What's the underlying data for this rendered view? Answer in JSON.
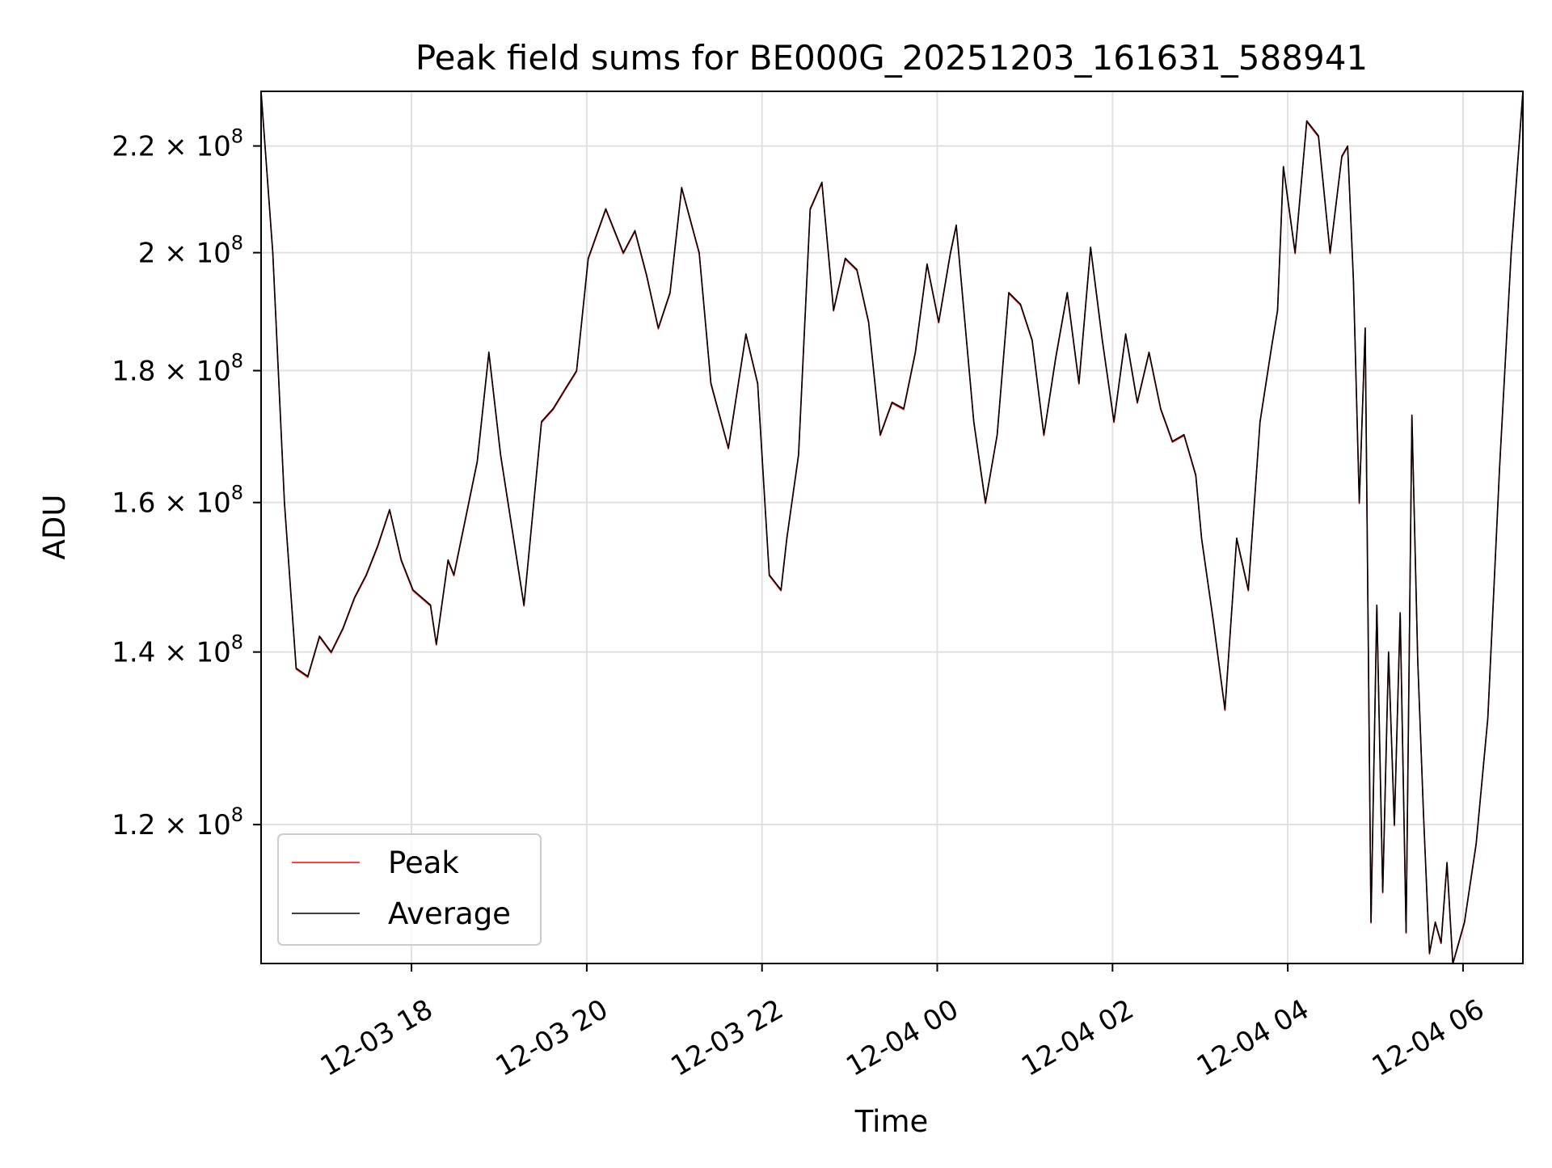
{
  "chart_data": {
    "type": "line",
    "title": "Peak field sums for BE000G_20251203_161631_588941",
    "xlabel": "Time",
    "ylabel": "ADU",
    "y_scale": "log",
    "ylim": [
      106000000,
      231000000
    ],
    "xlim": [
      "2025-12-03 16:17",
      "2025-12-04 06:41"
    ],
    "grid": true,
    "legend_position": "lower-left",
    "x_ticks": [
      {
        "value": "2025-12-03 18:00",
        "label": "12-03 18"
      },
      {
        "value": "2025-12-03 20:00",
        "label": "12-03 20"
      },
      {
        "value": "2025-12-03 22:00",
        "label": "12-03 22"
      },
      {
        "value": "2025-12-04 00:00",
        "label": "12-04 00"
      },
      {
        "value": "2025-12-04 02:00",
        "label": "12-04 02"
      },
      {
        "value": "2025-12-04 04:00",
        "label": "12-04 04"
      },
      {
        "value": "2025-12-04 06:00",
        "label": "12-04 06"
      }
    ],
    "y_ticks": [
      {
        "value": 120000000,
        "mantissa": "1.2",
        "exp": "8"
      },
      {
        "value": 140000000,
        "mantissa": "1.4",
        "exp": "8"
      },
      {
        "value": 160000000,
        "mantissa": "1.6",
        "exp": "8"
      },
      {
        "value": 180000000,
        "mantissa": "1.8",
        "exp": "8"
      },
      {
        "value": 200000000,
        "mantissa": "2",
        "exp": "8"
      },
      {
        "value": 220000000,
        "mantissa": "2.2",
        "exp": "8"
      }
    ],
    "times_symbol": "×",
    "tick_base": "10",
    "x": [
      "2025-12-03 16:17",
      "2025-12-03 16:25",
      "2025-12-03 16:33",
      "2025-12-03 16:41",
      "2025-12-03 16:49",
      "2025-12-03 16:57",
      "2025-12-03 17:05",
      "2025-12-03 17:13",
      "2025-12-03 17:21",
      "2025-12-03 17:29",
      "2025-12-03 17:37",
      "2025-12-03 17:45",
      "2025-12-03 17:53",
      "2025-12-03 18:01",
      "2025-12-03 18:13",
      "2025-12-03 18:17",
      "2025-12-03 18:25",
      "2025-12-03 18:29",
      "2025-12-03 18:45",
      "2025-12-03 18:53",
      "2025-12-03 19:01",
      "2025-12-03 19:17",
      "2025-12-03 19:29",
      "2025-12-03 19:37",
      "2025-12-03 19:45",
      "2025-12-03 19:53",
      "2025-12-03 20:01",
      "2025-12-03 20:13",
      "2025-12-03 20:25",
      "2025-12-03 20:33",
      "2025-12-03 20:41",
      "2025-12-03 20:49",
      "2025-12-03 20:57",
      "2025-12-03 21:05",
      "2025-12-03 21:17",
      "2025-12-03 21:25",
      "2025-12-03 21:37",
      "2025-12-03 21:49",
      "2025-12-03 21:57",
      "2025-12-03 22:05",
      "2025-12-03 22:13",
      "2025-12-03 22:17",
      "2025-12-03 22:25",
      "2025-12-03 22:33",
      "2025-12-03 22:41",
      "2025-12-03 22:49",
      "2025-12-03 22:57",
      "2025-12-03 23:05",
      "2025-12-03 23:13",
      "2025-12-03 23:21",
      "2025-12-03 23:29",
      "2025-12-03 23:37",
      "2025-12-03 23:45",
      "2025-12-03 23:53",
      "2025-12-04 00:01",
      "2025-12-04 00:09",
      "2025-12-04 00:13",
      "2025-12-04 00:25",
      "2025-12-04 00:33",
      "2025-12-04 00:41",
      "2025-12-04 00:49",
      "2025-12-04 00:57",
      "2025-12-04 01:05",
      "2025-12-04 01:13",
      "2025-12-04 01:21",
      "2025-12-04 01:29",
      "2025-12-04 01:37",
      "2025-12-04 01:45",
      "2025-12-04 01:53",
      "2025-12-04 02:01",
      "2025-12-04 02:09",
      "2025-12-04 02:17",
      "2025-12-04 02:25",
      "2025-12-04 02:33",
      "2025-12-04 02:41",
      "2025-12-04 02:49",
      "2025-12-04 02:57",
      "2025-12-04 03:01",
      "2025-12-04 03:09",
      "2025-12-04 03:17",
      "2025-12-04 03:25",
      "2025-12-04 03:33",
      "2025-12-04 03:41",
      "2025-12-04 03:49",
      "2025-12-04 03:53",
      "2025-12-04 03:57",
      "2025-12-04 04:05",
      "2025-12-04 04:13",
      "2025-12-04 04:21",
      "2025-12-04 04:29",
      "2025-12-04 04:37",
      "2025-12-04 04:41",
      "2025-12-04 04:45",
      "2025-12-04 04:49",
      "2025-12-04 04:53",
      "2025-12-04 04:57",
      "2025-12-04 05:01",
      "2025-12-04 05:05",
      "2025-12-04 05:09",
      "2025-12-04 05:13",
      "2025-12-04 05:17",
      "2025-12-04 05:21",
      "2025-12-04 05:25",
      "2025-12-04 05:29",
      "2025-12-04 05:33",
      "2025-12-04 05:37",
      "2025-12-04 05:41",
      "2025-12-04 05:45",
      "2025-12-04 05:49",
      "2025-12-04 05:53",
      "2025-12-04 06:01",
      "2025-12-04 06:09",
      "2025-12-04 06:17",
      "2025-12-04 06:25",
      "2025-12-04 06:33",
      "2025-12-04 06:41"
    ],
    "series": [
      {
        "name": "Peak",
        "color": "#ff0000",
        "values": [
          231000000,
          200000000,
          160000000,
          138000000,
          137000000,
          142000000,
          140000000,
          143000000,
          147000000,
          150000000,
          154000000,
          159000000,
          152000000,
          148000000,
          146000000,
          141000000,
          152000000,
          150000000,
          166000000,
          183000000,
          167000000,
          146000000,
          172000000,
          174000000,
          177000000,
          180000000,
          199000000,
          208000000,
          200000000,
          204000000,
          196000000,
          187000000,
          193000000,
          212000000,
          200000000,
          178000000,
          168000000,
          186000000,
          178000000,
          150000000,
          148000000,
          155000000,
          167000000,
          208000000,
          213000000,
          190000000,
          199000000,
          197000000,
          188000000,
          170000000,
          175000000,
          174000000,
          183000000,
          198000000,
          188000000,
          200000000,
          205000000,
          172000000,
          160000000,
          170000000,
          193000000,
          191000000,
          185000000,
          170000000,
          182000000,
          193000000,
          178000000,
          201000000,
          185000000,
          172000000,
          186000000,
          175000000,
          183000000,
          174000000,
          169000000,
          170000000,
          164000000,
          155000000,
          144000000,
          133000000,
          155000000,
          148000000,
          172000000,
          184000000,
          190000000,
          216000000,
          200000000,
          225000000,
          222000000,
          200000000,
          218000000,
          220000000,
          195000000,
          160000000,
          187000000,
          110000000,
          146000000,
          113000000,
          140000000,
          120000000,
          145000000,
          109000000,
          173000000,
          139000000,
          121000000,
          107000000,
          110000000,
          108000000,
          116000000,
          106000000,
          110000000,
          118000000,
          132000000,
          165000000,
          200000000,
          231000000
        ]
      },
      {
        "name": "Average",
        "color": "#000000",
        "values": [
          231000000,
          200000000,
          160000000,
          138000000,
          137000000,
          142000000,
          140000000,
          143000000,
          147000000,
          150000000,
          154000000,
          159000000,
          152000000,
          148000000,
          146000000,
          141000000,
          152000000,
          150000000,
          166000000,
          183000000,
          167000000,
          146000000,
          172000000,
          174000000,
          177000000,
          180000000,
          199000000,
          208000000,
          200000000,
          204000000,
          196000000,
          187000000,
          193000000,
          212000000,
          200000000,
          178000000,
          168000000,
          186000000,
          178000000,
          150000000,
          148000000,
          155000000,
          167000000,
          208000000,
          213000000,
          190000000,
          199000000,
          197000000,
          188000000,
          170000000,
          175000000,
          174000000,
          183000000,
          198000000,
          188000000,
          200000000,
          205000000,
          172000000,
          160000000,
          170000000,
          193000000,
          191000000,
          185000000,
          170000000,
          182000000,
          193000000,
          178000000,
          201000000,
          185000000,
          172000000,
          186000000,
          175000000,
          183000000,
          174000000,
          169000000,
          170000000,
          164000000,
          155000000,
          144000000,
          133000000,
          155000000,
          148000000,
          172000000,
          184000000,
          190000000,
          216000000,
          200000000,
          225000000,
          222000000,
          200000000,
          218000000,
          220000000,
          195000000,
          160000000,
          187000000,
          110000000,
          146000000,
          113000000,
          140000000,
          120000000,
          145000000,
          109000000,
          173000000,
          139000000,
          121000000,
          107000000,
          110000000,
          108000000,
          116000000,
          106000000,
          110000000,
          118000000,
          132000000,
          165000000,
          200000000,
          231000000
        ]
      }
    ]
  }
}
